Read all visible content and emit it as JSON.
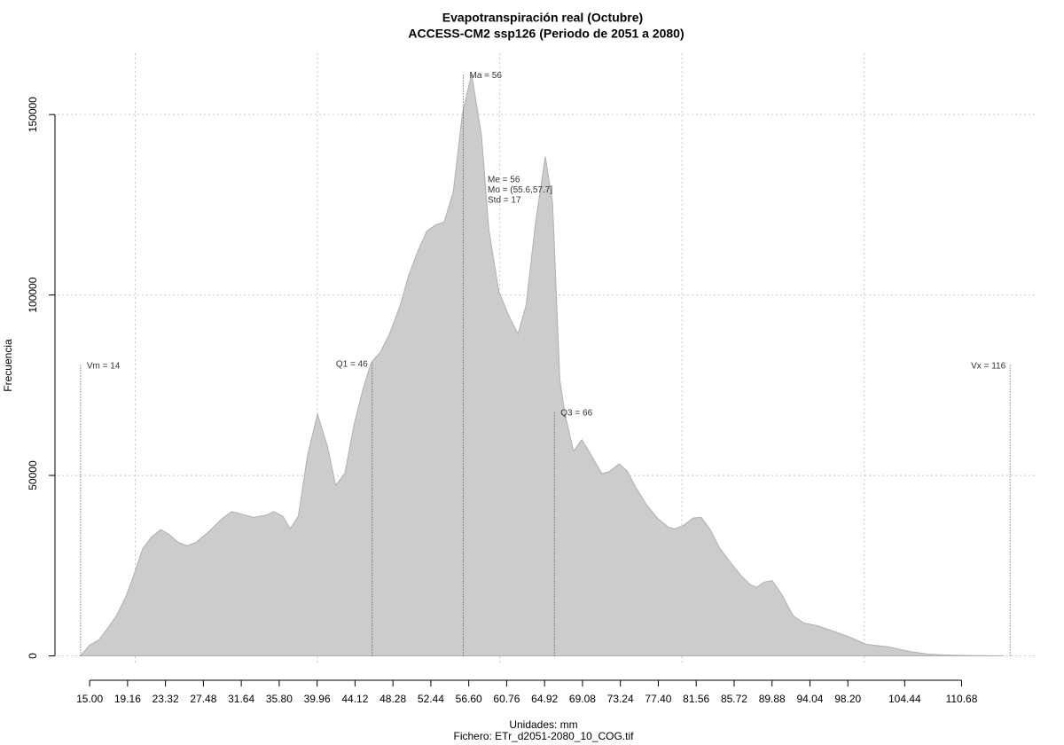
{
  "chart_data": {
    "type": "area",
    "title": "Evapotranspiración real (Octubre)",
    "subtitle": "ACCESS-CM2 ssp126 (Periodo de 2051 a 2080)",
    "xlabel": "Unidades: mm",
    "caption": "Fichero: ETr_d2051-2080_10_COG.tif",
    "ylabel": "Frecuencia",
    "color": "#cccccc",
    "x": [
      14,
      15,
      16,
      16.9,
      17.9,
      18.9,
      19.8,
      20.8,
      21.8,
      22.8,
      23.7,
      24.7,
      25.7,
      26.7,
      28.1,
      29.6,
      30.6,
      31.5,
      33.0,
      34.4,
      35.2,
      36.2,
      37.0,
      37.9,
      38.9,
      40.0,
      41.1,
      42.0,
      43.0,
      44.0,
      45.0,
      45.9,
      46.9,
      47.9,
      49.1,
      50.0,
      51.0,
      52.0,
      53.0,
      53.9,
      54.9,
      55.9,
      56.9,
      58.0,
      58.8,
      59.9,
      60.9,
      62.0,
      62.9,
      63.9,
      65.0,
      65.8,
      66.6,
      67.2,
      68.1,
      69.0,
      69.9,
      71.2,
      72.0,
      73.1,
      74.0,
      74.9,
      76.1,
      77.3,
      78.5,
      79.2,
      80.2,
      81.2,
      82.1,
      83.1,
      84.1,
      85.1,
      86.5,
      87.5,
      88.2,
      89.0,
      89.9,
      90.9,
      92.2,
      93.4,
      94.8,
      96.3,
      98.2,
      100.2,
      102.6,
      105.0,
      107.0,
      108.9,
      111.4,
      115.3
    ],
    "values": [
      0,
      3000,
      4400,
      7400,
      11000,
      16000,
      22000,
      29600,
      33000,
      35000,
      33700,
      31500,
      30500,
      31500,
      34500,
      38200,
      40000,
      39400,
      38400,
      39000,
      40000,
      38700,
      35200,
      38700,
      55400,
      67000,
      57900,
      47300,
      50500,
      64000,
      73900,
      81300,
      84200,
      89200,
      97300,
      105400,
      112100,
      117700,
      119500,
      120200,
      128600,
      150200,
      161300,
      144100,
      118200,
      101000,
      94800,
      89200,
      97300,
      119500,
      138400,
      125600,
      76400,
      66500,
      56700,
      59900,
      56200,
      50500,
      51000,
      53200,
      51200,
      46800,
      41900,
      38200,
      35700,
      35200,
      36200,
      38200,
      38400,
      35000,
      30000,
      26600,
      22200,
      19700,
      19000,
      20400,
      20900,
      17200,
      11100,
      9100,
      8400,
      7100,
      5400,
      3200,
      2500,
      1200,
      500,
      250,
      100,
      0
    ],
    "xlim": [
      11,
      119
    ],
    "ylim": [
      -7000,
      167000
    ],
    "xticks": [
      {
        "value": 15,
        "label": "15.00"
      },
      19.16,
      23.32,
      27.48,
      31.64,
      {
        "value": 35.8,
        "label": "35.80"
      },
      39.96,
      44.12,
      48.28,
      52.44,
      {
        "value": 56.6,
        "label": "56.60"
      },
      60.76,
      64.92,
      69.08,
      73.24,
      {
        "value": 77.4,
        "label": "77.40"
      },
      81.56,
      85.72,
      89.88,
      94.04,
      {
        "value": 98.2,
        "label": "98.20"
      },
      104.44,
      110.68
    ],
    "yticks": [
      0,
      50000,
      100000,
      150000
    ],
    "xgrid": [
      20,
      40,
      60,
      80,
      100
    ],
    "grid": true,
    "markers": [
      {
        "label": "Vm = 14",
        "x": 14,
        "y": 80800,
        "side": "right"
      },
      {
        "label": "Q1 = 46",
        "x": 46,
        "y": 81300,
        "side": "left"
      },
      {
        "label": "Ma = 56",
        "x": 56,
        "y": 161300,
        "side": "right"
      },
      {
        "label": "Q3 = 66",
        "x": 66,
        "y": 67700,
        "side": "right"
      },
      {
        "label": "Vx = 116",
        "x": 116,
        "y": 80800,
        "side": "left"
      }
    ],
    "stats": [
      "Me = 56",
      "Mo = (55.6,57.7]",
      "Std = 17"
    ]
  }
}
